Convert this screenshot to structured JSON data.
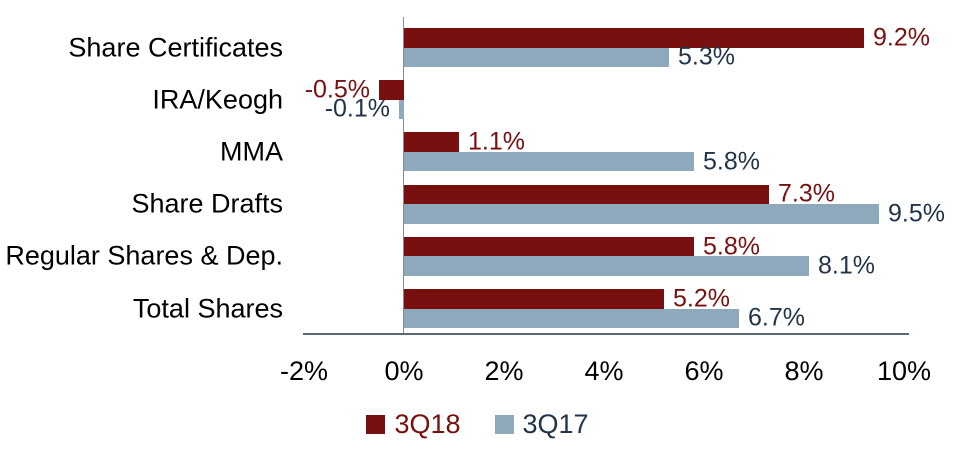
{
  "chart_data": {
    "type": "bar",
    "orientation": "horizontal",
    "title": "",
    "categories": [
      "Share Certificates",
      "IRA/Keogh",
      "MMA",
      "Share Drafts",
      "Regular Shares & Dep.",
      "Total Shares"
    ],
    "series": [
      {
        "name": "3Q18",
        "color": "#78100F",
        "label_color": "#78100F",
        "values": [
          9.2,
          -0.5,
          1.1,
          7.3,
          5.8,
          5.2
        ],
        "value_labels": [
          "9.2%",
          "-0.5%",
          "1.1%",
          "7.3%",
          "5.8%",
          "5.2%"
        ]
      },
      {
        "name": "3Q17",
        "color": "#8EA9BC",
        "label_color": "#22344A",
        "values": [
          5.3,
          -0.1,
          5.8,
          9.5,
          8.1,
          6.7
        ],
        "value_labels": [
          "5.3%",
          "-0.1%",
          "5.8%",
          "9.5%",
          "8.1%",
          "6.7%"
        ]
      }
    ],
    "x_ticks": [
      {
        "value": -2,
        "label": "-2%"
      },
      {
        "value": 0,
        "label": "0%"
      },
      {
        "value": 2,
        "label": "2%"
      },
      {
        "value": 4,
        "label": "4%"
      },
      {
        "value": 6,
        "label": "6%"
      },
      {
        "value": 8,
        "label": "8%"
      },
      {
        "value": 10,
        "label": "10%"
      }
    ],
    "xlim": [
      -2,
      10
    ],
    "grid": false,
    "legend_position": "bottom",
    "text_color": "#000000",
    "axis_line_color": "#8A8A8A",
    "baseline_color": "#5A6977",
    "background": "#FFFFFF"
  }
}
